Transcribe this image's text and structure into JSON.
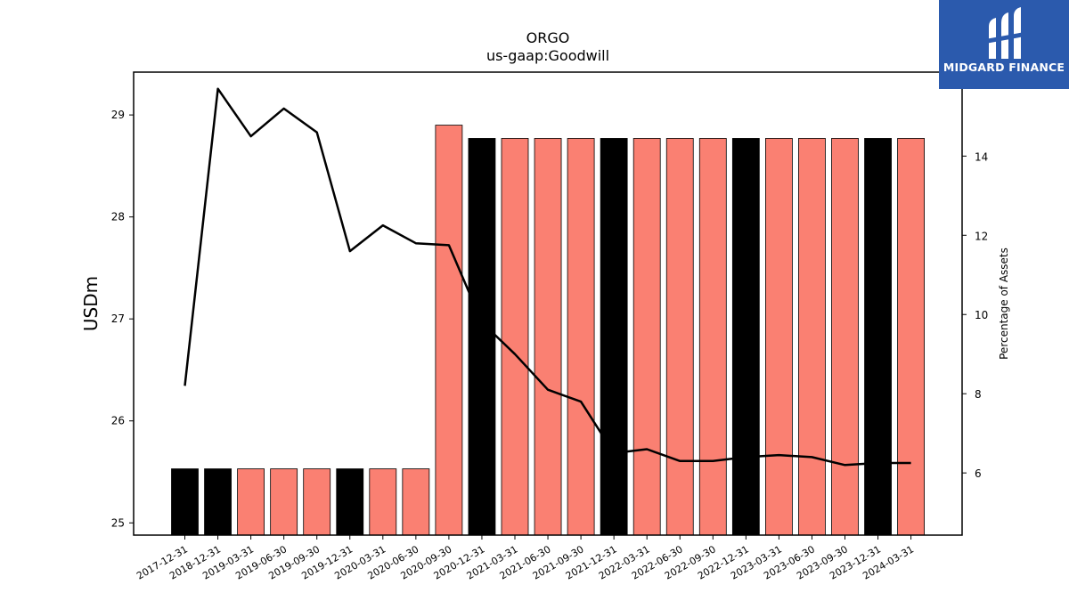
{
  "chart_data": {
    "type": "bar+line",
    "title": "ORGO",
    "subtitle": "us-gaap:Goodwill",
    "ylabel_left": "USDm",
    "ylabel_right": "Percentage of Assets",
    "categories": [
      "2017-12-31",
      "2018-12-31",
      "2019-03-31",
      "2019-06-30",
      "2019-09-30",
      "2019-12-31",
      "2020-03-31",
      "2020-06-30",
      "2020-09-30",
      "2020-12-31",
      "2021-03-31",
      "2021-06-30",
      "2021-09-30",
      "2021-12-31",
      "2022-03-31",
      "2022-06-30",
      "2022-09-30",
      "2022-12-31",
      "2023-03-31",
      "2023-06-30",
      "2023-09-30",
      "2023-12-31",
      "2024-03-31"
    ],
    "bar_values": [
      25.53,
      25.53,
      25.53,
      25.53,
      25.53,
      25.53,
      25.53,
      25.53,
      28.9,
      28.77,
      28.77,
      28.77,
      28.77,
      28.77,
      28.77,
      28.77,
      28.77,
      28.77,
      28.77,
      28.77,
      28.77,
      28.77,
      28.77
    ],
    "bar_colors": [
      "#000000",
      "#000000",
      "#fa8072",
      "#fa8072",
      "#fa8072",
      "#000000",
      "#fa8072",
      "#fa8072",
      "#fa8072",
      "#000000",
      "#fa8072",
      "#fa8072",
      "#fa8072",
      "#000000",
      "#fa8072",
      "#fa8072",
      "#fa8072",
      "#000000",
      "#fa8072",
      "#fa8072",
      "#fa8072",
      "#000000",
      "#fa8072"
    ],
    "line_values": [
      8.2,
      15.7,
      14.5,
      15.2,
      14.6,
      11.6,
      12.25,
      11.8,
      11.75,
      9.8,
      9.0,
      8.1,
      7.8,
      6.5,
      6.6,
      6.3,
      6.3,
      6.4,
      6.45,
      6.4,
      6.2,
      6.25,
      6.25
    ],
    "line_color": "#000000",
    "ylim_left": [
      24.88,
      29.42
    ],
    "ylim_right": [
      4.43,
      16.12
    ],
    "yticks_left": [
      25,
      26,
      27,
      28,
      29
    ],
    "yticks_right": [
      6,
      8,
      10,
      12,
      14
    ]
  },
  "logo": {
    "text": "MIDGARD FINANCE",
    "bg_color": "#2b5aad"
  }
}
